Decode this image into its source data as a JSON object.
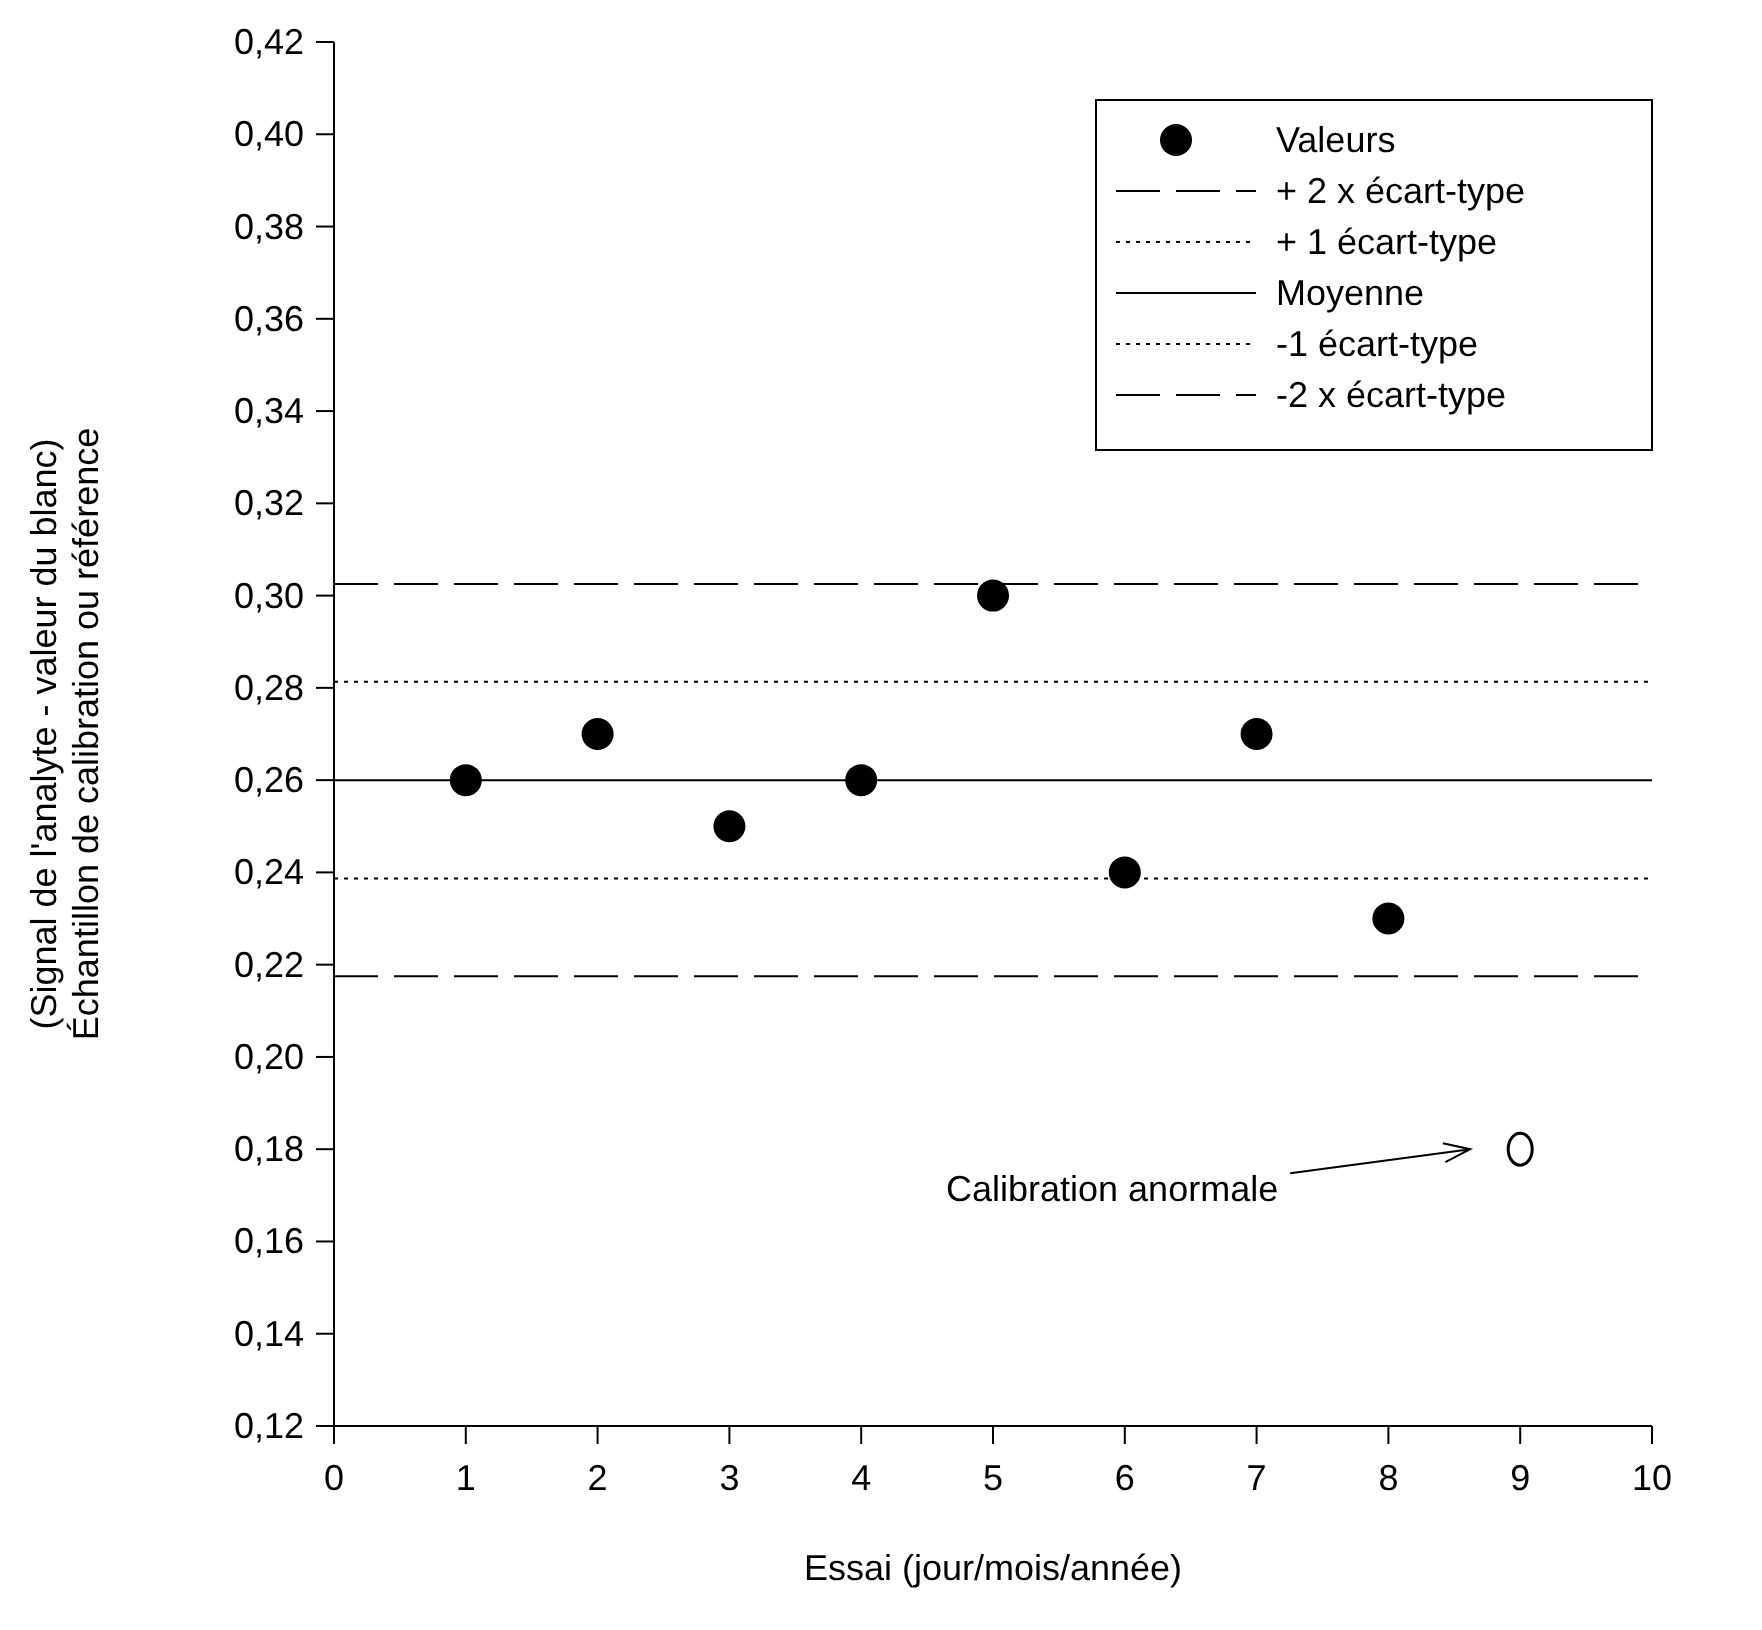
{
  "chart_data": {
    "type": "scatter",
    "xlabel": "Essai (jour/mois/année)",
    "ylabel": "(Signal de l'analyte - valeur du blanc)\nÉchantillon de calibration ou référence",
    "x": [
      1,
      2,
      3,
      4,
      5,
      6,
      7,
      8
    ],
    "series": [
      {
        "name": "Valeurs",
        "color": "#000000",
        "values": [
          0.26,
          0.27,
          0.25,
          0.26,
          0.3,
          0.24,
          0.27,
          0.23
        ]
      },
      {
        "color": "#000000",
        "x": [
          9
        ],
        "values": [
          0.18
        ]
      }
    ],
    "marker": "circle",
    "xlim": [
      0,
      10
    ],
    "xticks": [
      0,
      1,
      2,
      3,
      4,
      5,
      6,
      7,
      8,
      9,
      10
    ],
    "ylim": [
      0.12,
      0.42
    ],
    "yticks": [
      {
        "value": 0.12,
        "label": "0,12"
      },
      {
        "value": 0.14,
        "label": "0,14"
      },
      {
        "value": 0.16,
        "label": "0,16"
      },
      {
        "value": 0.18,
        "label": "0,18"
      },
      {
        "value": 0.2,
        "label": "0,20"
      },
      {
        "value": 0.22,
        "label": "0,22"
      },
      {
        "value": 0.24,
        "label": "0,24"
      },
      {
        "value": 0.26,
        "label": "0,26"
      },
      {
        "value": 0.28,
        "label": "0,28"
      },
      {
        "value": 0.3,
        "label": "0,30"
      },
      {
        "value": 0.32,
        "label": "0,32"
      },
      {
        "value": 0.34,
        "label": "0,34"
      },
      {
        "value": 0.36,
        "label": "0,36"
      },
      {
        "value": 0.38,
        "label": "0,38"
      },
      {
        "value": 0.4,
        "label": "0,40"
      },
      {
        "value": 0.42,
        "label": "0,42"
      }
    ],
    "ref_lines": [
      {
        "axis": "y",
        "value": 0.3025,
        "label": "+ 2 x écart-type",
        "color": "#000000",
        "line_style": "dashed"
      },
      {
        "axis": "y",
        "value": 0.2813,
        "label": "+ 1 écart-type",
        "color": "#000000",
        "line_style": "dotted"
      },
      {
        "axis": "y",
        "value": 0.26,
        "label": "Moyenne",
        "color": "#000000",
        "line_style": "solid"
      },
      {
        "axis": "y",
        "value": 0.2387,
        "label": "-1 écart-type",
        "color": "#000000",
        "line_style": "dotted"
      },
      {
        "axis": "y",
        "value": 0.2175,
        "label": "-2 x écart-type",
        "color": "#000000",
        "line_style": "dashed"
      }
    ],
    "annotations": [
      "Calibration anormale"
    ],
    "grid": false,
    "legend": "top right"
  }
}
